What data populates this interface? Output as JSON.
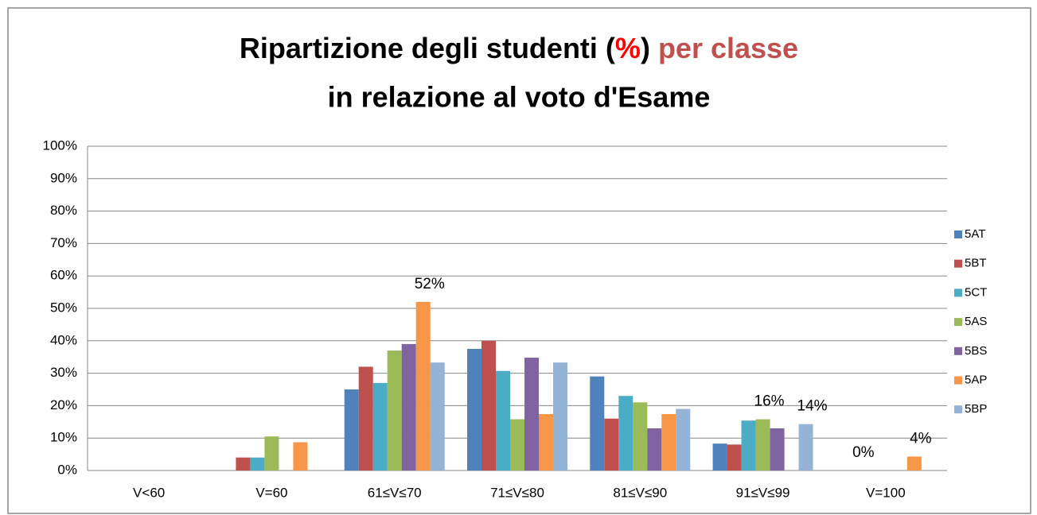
{
  "chart_data": {
    "type": "bar",
    "title": [
      "Ripartizione degli studenti (",
      "%",
      ")",
      " per classe",
      "in relazione al voto d'Esame"
    ],
    "categories": [
      "V<60",
      "V=60",
      "61≤V≤70",
      "71≤V≤80",
      "81≤V≤90",
      "91≤V≤99",
      "V=100"
    ],
    "series": [
      {
        "name": "5AT",
        "color": "#4f81bd",
        "values": [
          0,
          0,
          25,
          37.5,
          29,
          8.3,
          0
        ]
      },
      {
        "name": "5BT",
        "color": "#c0504d",
        "values": [
          0,
          4,
          32,
          40,
          16,
          8,
          0
        ],
        "value_labels": [
          null,
          null,
          null,
          null,
          null,
          null,
          "0%"
        ]
      },
      {
        "name": "5CT",
        "color": "#4bacc6",
        "values": [
          0,
          4,
          27,
          30.7,
          23,
          15.4,
          0
        ]
      },
      {
        "name": "5AS",
        "color": "#9bbb59",
        "values": [
          0,
          10.5,
          37,
          15.8,
          21,
          15.8,
          0
        ],
        "value_labels": [
          null,
          null,
          null,
          null,
          null,
          "16%",
          null
        ]
      },
      {
        "name": "5BS",
        "color": "#8064a2",
        "values": [
          0,
          0,
          39,
          34.8,
          13,
          13,
          0
        ]
      },
      {
        "name": "5AP",
        "color": "#f79646",
        "values": [
          0,
          8.7,
          52,
          17.4,
          17.4,
          0,
          4.3
        ],
        "value_labels": [
          null,
          null,
          "52%",
          null,
          null,
          null,
          "4%"
        ]
      },
      {
        "name": "5BP",
        "color": "#95b3d7",
        "values": [
          0,
          0,
          33.3,
          33.3,
          19,
          14.3,
          0
        ],
        "value_labels": [
          null,
          null,
          null,
          null,
          null,
          "14%",
          null
        ]
      }
    ],
    "ylim": [
      0,
      100
    ],
    "yticks": [
      {
        "value": 0,
        "label": "0%"
      },
      {
        "value": 10,
        "label": "10%"
      },
      {
        "value": 20,
        "label": "20%"
      },
      {
        "value": 30,
        "label": "30%"
      },
      {
        "value": 40,
        "label": "40%"
      },
      {
        "value": 50,
        "label": "50%"
      },
      {
        "value": 60,
        "label": "60%"
      },
      {
        "value": 70,
        "label": "70%"
      },
      {
        "value": 80,
        "label": "80%"
      },
      {
        "value": 90,
        "label": "90%"
      },
      {
        "value": 100,
        "label": "100%"
      }
    ],
    "grid": true,
    "legend": "right"
  }
}
